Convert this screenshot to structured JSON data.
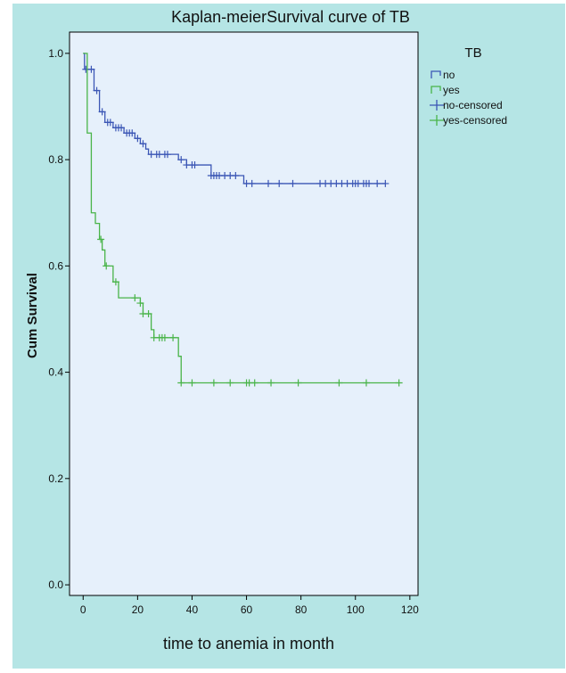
{
  "chart_data": {
    "type": "line",
    "subtype": "kaplan-meier",
    "title": "Kaplan-meierSurvival curve of TB",
    "xlabel": "time to anemia in month",
    "ylabel": "Cum Survival",
    "xlim": [
      -5,
      123
    ],
    "ylim": [
      -0.02,
      1.04
    ],
    "x_ticks": [
      0,
      20,
      40,
      60,
      80,
      100,
      120
    ],
    "y_ticks": [
      0.0,
      0.2,
      0.4,
      0.6,
      0.8,
      1.0
    ],
    "x_tick_labels": [
      "0",
      "20",
      "40",
      "60",
      "80",
      "100",
      "120"
    ],
    "y_tick_labels": [
      "0.0",
      "0.2",
      "0.4",
      "0.6",
      "0.8",
      "1.0"
    ],
    "grid": false,
    "legend": {
      "title": "TB",
      "placement": "right",
      "entries": [
        "no",
        "yes",
        "no-censored",
        "yes-censored"
      ]
    },
    "colors": {
      "outer_background": "#b5e5e5",
      "plot_background": "#e6f0fb",
      "no": "#3b56b5",
      "yes": "#49b449"
    },
    "series": [
      {
        "name": "no",
        "steps": [
          [
            0,
            1.0
          ],
          [
            0.5,
            0.97
          ],
          [
            4,
            0.93
          ],
          [
            6,
            0.89
          ],
          [
            8,
            0.87
          ],
          [
            11,
            0.86
          ],
          [
            15,
            0.85
          ],
          [
            19,
            0.84
          ],
          [
            21,
            0.83
          ],
          [
            23,
            0.82
          ],
          [
            24,
            0.81
          ],
          [
            35,
            0.8
          ],
          [
            38,
            0.79
          ],
          [
            47,
            0.77
          ],
          [
            59,
            0.755
          ],
          [
            111,
            0.755
          ]
        ],
        "censored_x": [
          1,
          3,
          5,
          7,
          9,
          10,
          12,
          13,
          14,
          16,
          17,
          18,
          20,
          22,
          25,
          27,
          28,
          30,
          31,
          36,
          38,
          40,
          41,
          47,
          48,
          49,
          50,
          52,
          54,
          56,
          60,
          62,
          68,
          72,
          77,
          87,
          89,
          91,
          93,
          95,
          97,
          99,
          100,
          101,
          103,
          104,
          105,
          108,
          111
        ]
      },
      {
        "name": "yes",
        "steps": [
          [
            0,
            1.0
          ],
          [
            1.5,
            0.85
          ],
          [
            3,
            0.7
          ],
          [
            4.5,
            0.68
          ],
          [
            6,
            0.65
          ],
          [
            7,
            0.63
          ],
          [
            8,
            0.6
          ],
          [
            11,
            0.57
          ],
          [
            13,
            0.54
          ],
          [
            21,
            0.53
          ],
          [
            22,
            0.51
          ],
          [
            25,
            0.48
          ],
          [
            26,
            0.465
          ],
          [
            35,
            0.43
          ],
          [
            36,
            0.38
          ],
          [
            116,
            0.38
          ]
        ],
        "censored_x": [
          6.5,
          8.5,
          12,
          19,
          21,
          22,
          24,
          26,
          28,
          29,
          30,
          33,
          36,
          40,
          48,
          54,
          60,
          61,
          63,
          69,
          79,
          94,
          104,
          116
        ]
      }
    ]
  }
}
